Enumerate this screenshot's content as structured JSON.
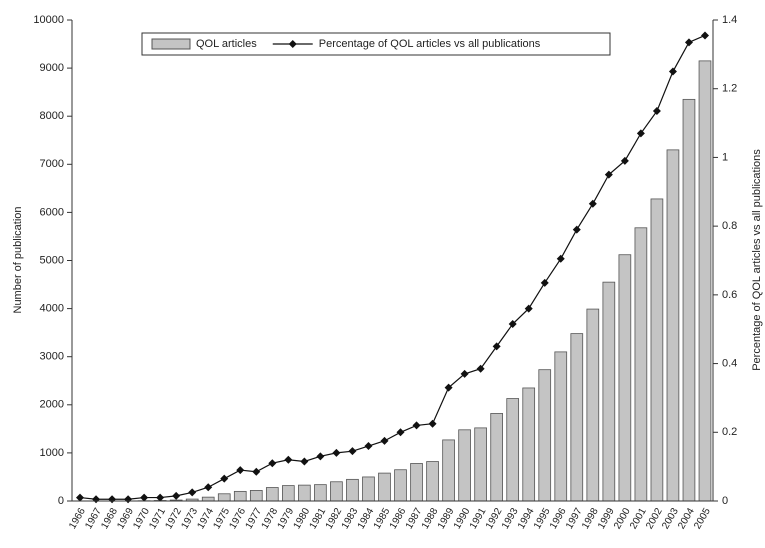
{
  "chart_data": {
    "type": "bar",
    "categories": [
      "1966",
      "1967",
      "1968",
      "1969",
      "1970",
      "1971",
      "1972",
      "1973",
      "1974",
      "1975",
      "1976",
      "1977",
      "1978",
      "1979",
      "1980",
      "1981",
      "1982",
      "1983",
      "1984",
      "1985",
      "1986",
      "1987",
      "1988",
      "1989",
      "1990",
      "1991",
      "1992",
      "1993",
      "1994",
      "1995",
      "1996",
      "1997",
      "1998",
      "1999",
      "2000",
      "2001",
      "2002",
      "2003",
      "2004",
      "2005"
    ],
    "series": [
      {
        "name": "QOL articles",
        "color": "#c4c4c4",
        "type": "bar",
        "values": [
          0,
          0,
          0,
          0,
          5,
          10,
          20,
          40,
          80,
          150,
          200,
          220,
          280,
          320,
          330,
          340,
          400,
          450,
          500,
          580,
          650,
          780,
          820,
          1270,
          1480,
          1520,
          1820,
          2130,
          2350,
          2730,
          3100,
          3480,
          3990,
          4550,
          5120,
          5680,
          6280,
          7300,
          8350,
          9150
        ]
      },
      {
        "name": "Percentage of QOL articles vs all publications",
        "color": "#111111",
        "type": "line",
        "axis": "y2",
        "values": [
          0.01,
          0.005,
          0.005,
          0.005,
          0.01,
          0.01,
          0.015,
          0.025,
          0.04,
          0.065,
          0.09,
          0.085,
          0.11,
          0.12,
          0.115,
          0.13,
          0.14,
          0.145,
          0.16,
          0.175,
          0.2,
          0.22,
          0.225,
          0.33,
          0.37,
          0.385,
          0.45,
          0.515,
          0.56,
          0.635,
          0.705,
          0.79,
          0.865,
          0.95,
          0.99,
          1.07,
          1.135,
          1.25,
          1.335,
          1.355
        ]
      }
    ],
    "y_label": "Number of publication",
    "y2_label": "Percentage of QOL articles vs all publications",
    "ylim": [
      0,
      10000
    ],
    "yticks": [
      0,
      1000,
      2000,
      3000,
      4000,
      5000,
      6000,
      7000,
      8000,
      9000,
      10000
    ],
    "y2lim": [
      0,
      1.4
    ],
    "y2ticks": [
      0,
      0.2,
      0.4,
      0.6,
      0.8,
      1,
      1.2,
      1.4
    ],
    "legend": "top"
  }
}
